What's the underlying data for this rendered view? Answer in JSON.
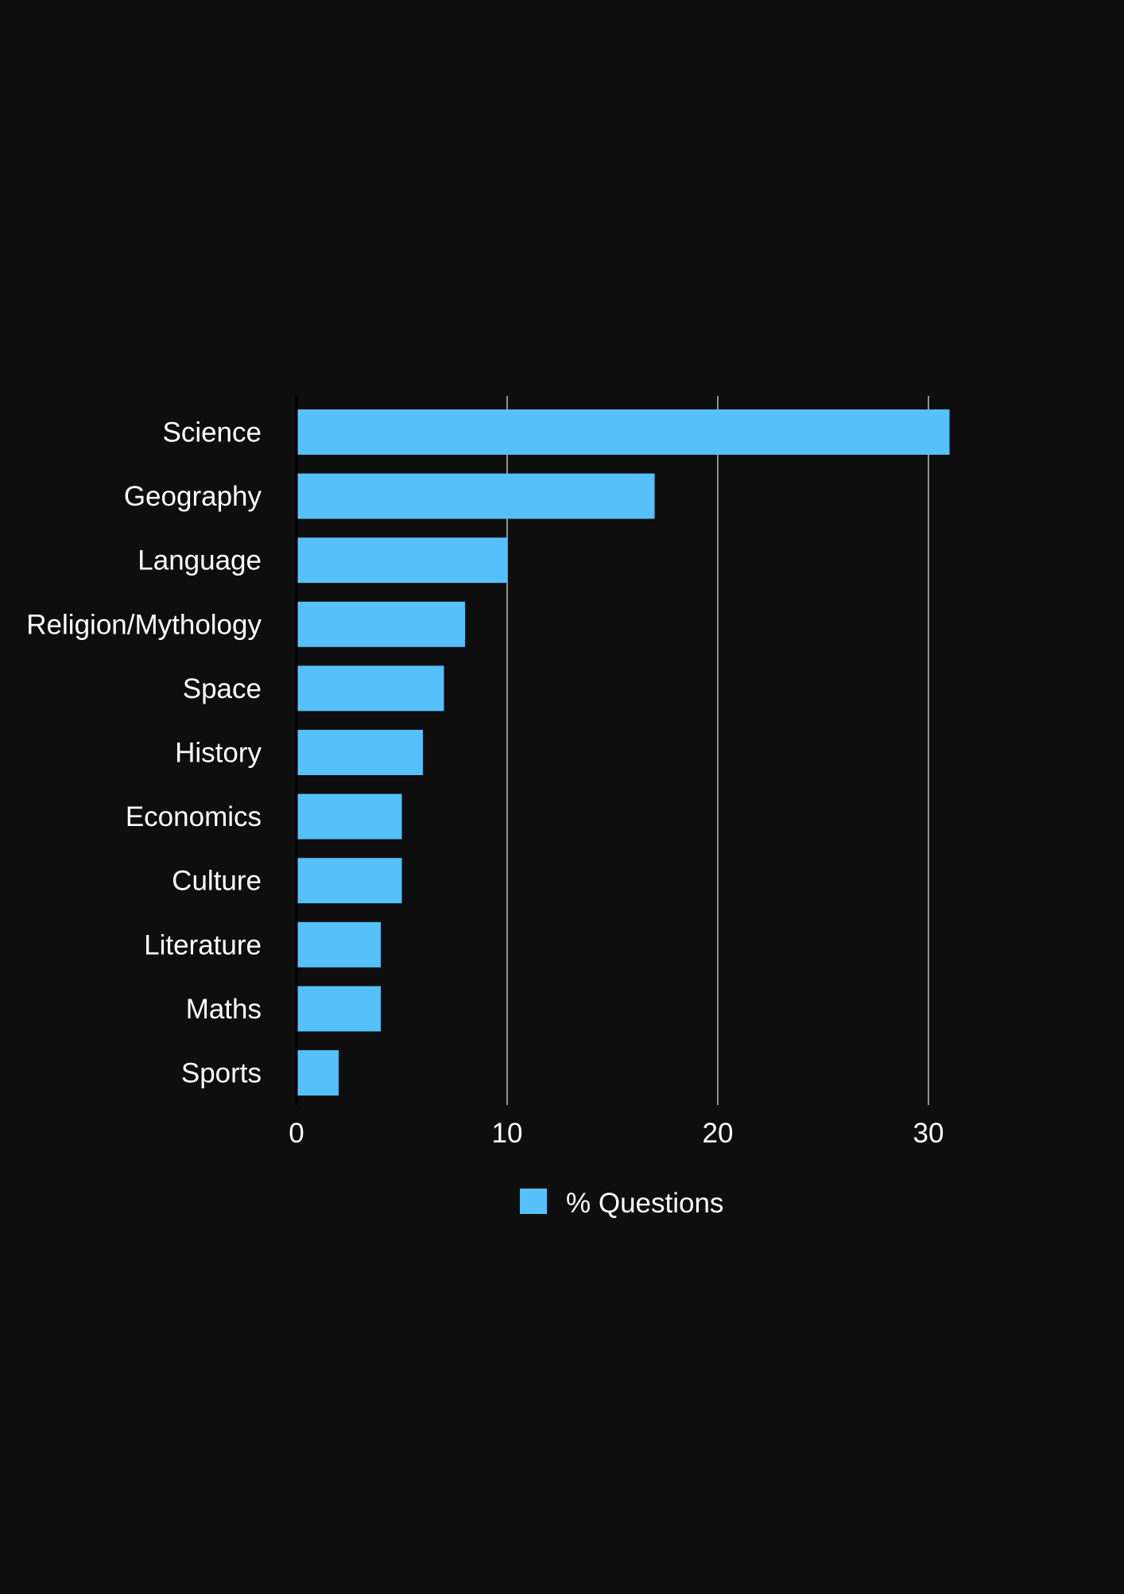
{
  "chart_data": {
    "type": "bar",
    "orientation": "horizontal",
    "categories": [
      "Science",
      "Geography",
      "Language",
      "Religion/Mythology",
      "Space",
      "History",
      "Economics",
      "Culture",
      "Literature",
      "Maths",
      "Sports"
    ],
    "series": [
      {
        "name": "% Questions",
        "color": "#56c0fa",
        "values": [
          31,
          17,
          10,
          8,
          7,
          6,
          5,
          5,
          4,
          4,
          2
        ]
      }
    ],
    "xlim": [
      0,
      30
    ],
    "xticks": [
      0,
      10,
      20,
      30
    ],
    "grid": true,
    "legend": "bottom-center"
  },
  "colors": {
    "background": "#0e0e0e",
    "bar": "#56c0fa",
    "grid": "#bdbdbd",
    "axis": "#000000",
    "text": "#ffffff"
  }
}
